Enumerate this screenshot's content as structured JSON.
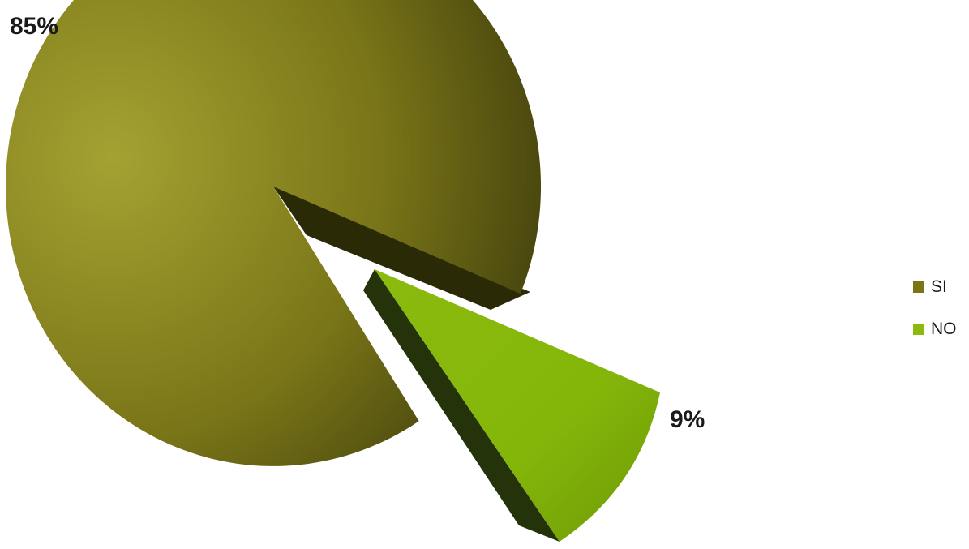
{
  "chart_data": {
    "type": "pie",
    "categories": [
      "SI",
      "NO"
    ],
    "values": [
      85,
      9
    ],
    "data_labels": [
      "85%",
      "9%"
    ],
    "legend": {
      "position": "right",
      "entries": [
        "SI",
        "NO"
      ]
    },
    "colors": [
      "#7a7618",
      "#8cba0e"
    ],
    "shadow_colors": [
      "#2b2a07",
      "#24330a"
    ],
    "title": "",
    "exploded": [
      false,
      true
    ],
    "style": "3d"
  }
}
